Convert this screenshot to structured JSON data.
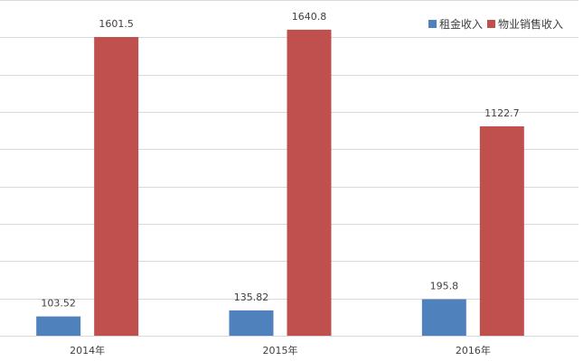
{
  "chart_data": {
    "type": "bar",
    "categories": [
      "2014年",
      "2015年",
      "2016年"
    ],
    "series": [
      {
        "name": "租金收入",
        "values": [
          103.52,
          135.82,
          195.8
        ],
        "labels": [
          "103.52",
          "135.82",
          "195.8"
        ],
        "color": "#4F81BD"
      },
      {
        "name": "物业销售收入",
        "values": [
          1601.5,
          1640.8,
          1122.7
        ],
        "labels": [
          "1601.5",
          "1640.8",
          "1122.7"
        ],
        "color": "#C0504D"
      }
    ],
    "ylim": [
      0,
      1800
    ],
    "y_gridlines": [
      0,
      200,
      400,
      600,
      800,
      1000,
      1200,
      1400,
      1600,
      1800
    ],
    "grid": true,
    "y_axis_labels_visible": false,
    "legend": "top-right",
    "gridline_color": "#D9D9D9"
  }
}
